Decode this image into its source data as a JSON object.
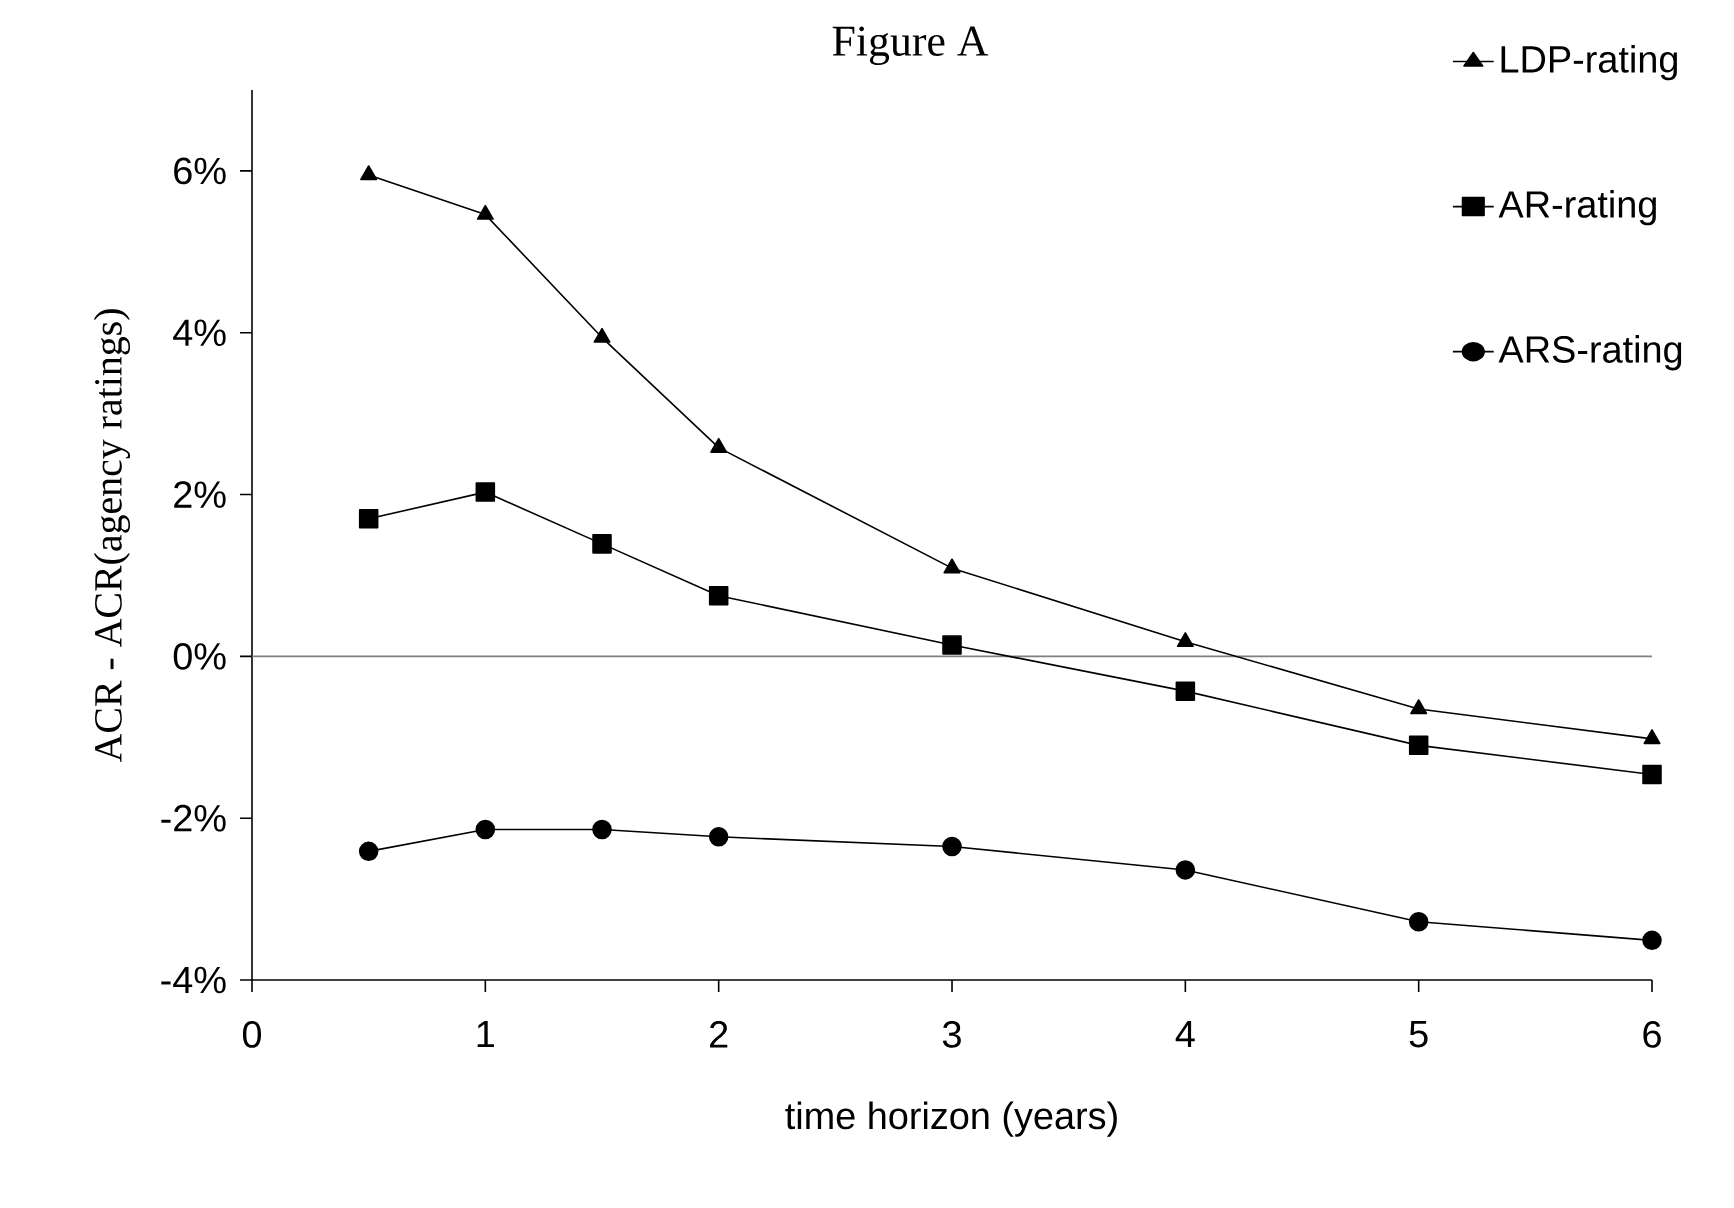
{
  "chart_data": {
    "type": "line",
    "title": "Figure A",
    "xlabel": "time horizon (years)",
    "ylabel": "ACR - ACR(agency ratings)",
    "x": [
      0.5,
      1,
      1.5,
      2,
      3,
      4,
      5,
      6
    ],
    "series": [
      {
        "name": "LDP-rating",
        "color": "#000000",
        "marker": "triangle",
        "values": [
          5.95,
          5.46,
          3.94,
          2.58,
          1.09,
          0.18,
          -0.65,
          -1.02
        ]
      },
      {
        "name": "AR-rating",
        "color": "#000000",
        "marker": "square",
        "values": [
          1.7,
          2.03,
          1.39,
          0.75,
          0.14,
          -0.43,
          -1.1,
          -1.46
        ]
      },
      {
        "name": "ARS-rating",
        "color": "#000000",
        "marker": "circle",
        "values": [
          -2.41,
          -2.14,
          -2.14,
          -2.23,
          -2.35,
          -2.64,
          -3.28,
          -3.51
        ]
      }
    ],
    "xlim": [
      0,
      6
    ],
    "xticks": [
      0,
      1,
      2,
      3,
      4,
      5,
      6
    ],
    "ylim": [
      -4,
      7
    ],
    "yticks": [
      {
        "value": -4,
        "label": "-4%"
      },
      {
        "value": -2,
        "label": "-2%"
      },
      {
        "value": 0,
        "label": "0%"
      },
      {
        "value": 2,
        "label": "2%"
      },
      {
        "value": 4,
        "label": "4%"
      },
      {
        "value": 6,
        "label": "6%"
      }
    ],
    "ref_lines": [
      {
        "axis": "y",
        "value": 0,
        "color": "#808080"
      }
    ],
    "legend": "top right",
    "grid": false,
    "line_style": "solid"
  }
}
